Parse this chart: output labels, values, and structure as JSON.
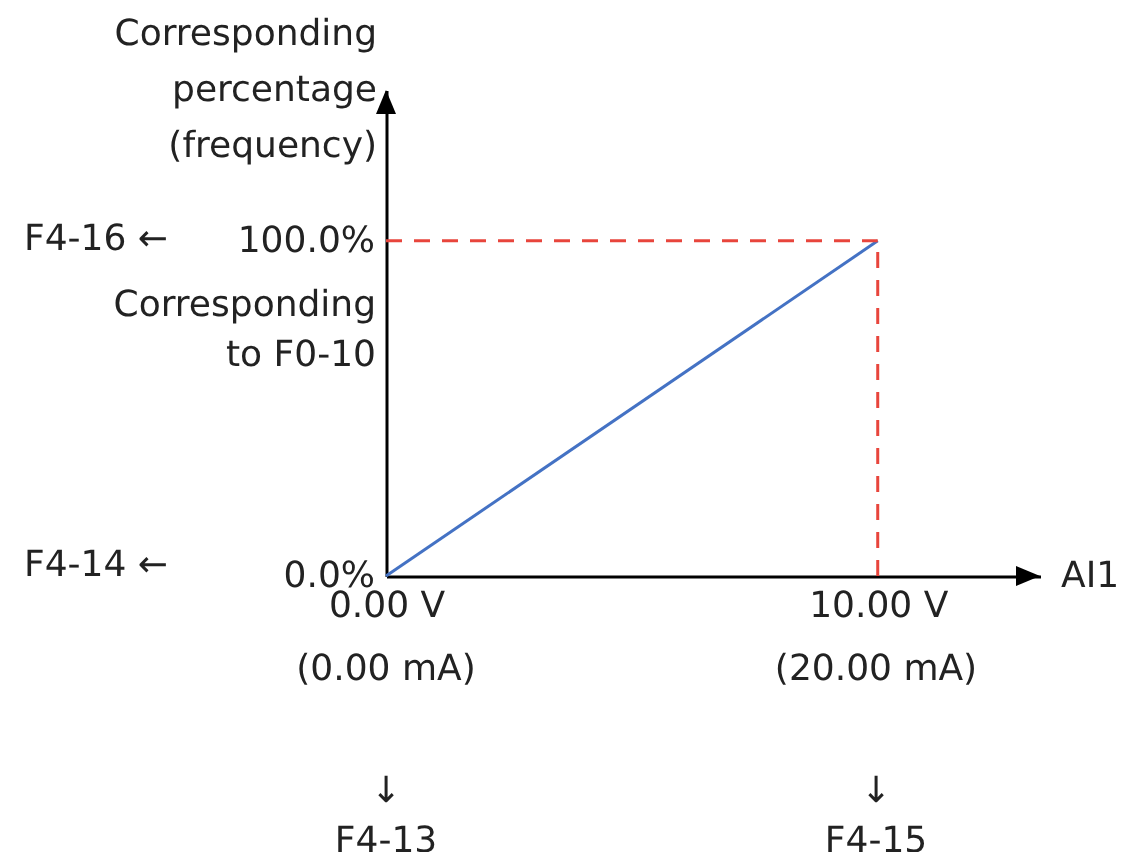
{
  "chart_data": {
    "type": "line",
    "xlabel": "AI1",
    "ylabel": "Corresponding percentage (frequency)",
    "x": [
      0,
      10
    ],
    "series": [
      {
        "color": "#4472c4",
        "values": [
          0,
          100
        ]
      }
    ],
    "xlim": [
      0,
      13.3
    ],
    "ylim": [
      0,
      145
    ],
    "xticks": [
      {
        "value": 0,
        "label": "0.00 V"
      },
      {
        "value": 10,
        "label": "10.00 V"
      }
    ],
    "yticks": [
      {
        "value": 0,
        "label": "0.0%"
      },
      {
        "value": 100,
        "label": "100.0%"
      }
    ],
    "ref_lines": [
      {
        "axis": "y",
        "value": 100,
        "color": "#e8453c",
        "line_style": "dashed"
      },
      {
        "axis": "x",
        "value": 10,
        "color": "#e8453c",
        "line_style": "dashed"
      }
    ],
    "annotations": [
      "F4-16 ←",
      "Corresponding to F0-10",
      "F4-14 ←",
      "(0.00 mA)",
      "(20.00 mA)",
      "↓ F4-13",
      "↓ F4-15"
    ],
    "grid": false,
    "marker": "none",
    "line_style": "solid"
  }
}
